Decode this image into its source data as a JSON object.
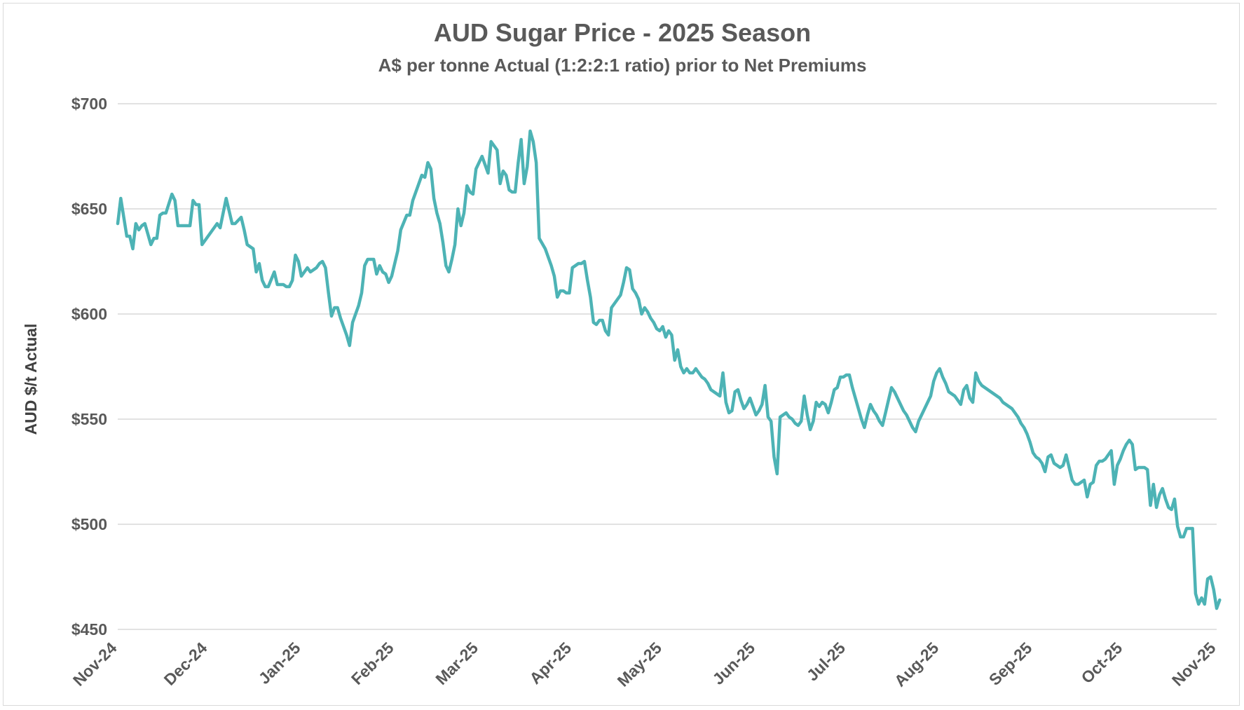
{
  "chart_data": {
    "type": "line",
    "title": "AUD Sugar Price - 2025 Season",
    "subtitle": "A$ per tonne Actual (1:2:2:1 ratio) prior to Net Premiums",
    "xlabel": "",
    "ylabel": "AUD $/t Actual",
    "ylim": [
      450,
      700
    ],
    "yticks": [
      450,
      500,
      550,
      600,
      650,
      700
    ],
    "ytick_labels": [
      "$450",
      "$500",
      "$550",
      "$600",
      "$650",
      "$700"
    ],
    "xlim": [
      "2024-11-01",
      "2025-11-01"
    ],
    "categories": [
      "Nov-24",
      "Dec-24",
      "Jan-25",
      "Feb-25",
      "Mar-25",
      "Apr-25",
      "May-25",
      "Jun-25",
      "Jul-25",
      "Aug-25",
      "Sep-25",
      "Oct-25",
      "Nov-25"
    ],
    "xtick_dates": [
      "2024-11-01",
      "2024-12-01",
      "2025-01-01",
      "2025-02-01",
      "2025-03-01",
      "2025-04-01",
      "2025-05-01",
      "2025-06-01",
      "2025-07-01",
      "2025-08-01",
      "2025-09-01",
      "2025-10-01",
      "2025-11-01"
    ],
    "grid": true,
    "legend": "none",
    "color": "#4db3b5",
    "series": [
      {
        "x": [
          "2024-11-01",
          "2024-11-02",
          "2024-11-04",
          "2024-11-05",
          "2024-11-06",
          "2024-11-07",
          "2024-11-08",
          "2024-11-09",
          "2024-11-10",
          "2024-11-12",
          "2024-11-13",
          "2024-11-14",
          "2024-11-15",
          "2024-11-16",
          "2024-11-17",
          "2024-11-19",
          "2024-11-20",
          "2024-11-21",
          "2024-11-22",
          "2024-11-24",
          "2024-11-25",
          "2024-11-26",
          "2024-11-27",
          "2024-11-28",
          "2024-11-29",
          "2024-12-03",
          "2024-12-04",
          "2024-12-05",
          "2024-12-06",
          "2024-12-07",
          "2024-12-09",
          "2024-12-10",
          "2024-12-12",
          "2024-12-13",
          "2024-12-14",
          "2024-12-16",
          "2024-12-17",
          "2024-12-18",
          "2024-12-19",
          "2024-12-20",
          "2024-12-21",
          "2024-12-23",
          "2024-12-24",
          "2024-12-26",
          "2024-12-27",
          "2024-12-28",
          "2024-12-29",
          "2024-12-30",
          "2024-12-31",
          "2025-01-01",
          "2025-01-03",
          "2025-01-04",
          "2025-01-06",
          "2025-01-07",
          "2025-01-08",
          "2025-01-09",
          "2025-01-10",
          "2025-01-11",
          "2025-01-12",
          "2025-01-13",
          "2025-01-14",
          "2025-01-16",
          "2025-01-17",
          "2025-01-18",
          "2025-01-19",
          "2025-01-20",
          "2025-01-21",
          "2025-01-22",
          "2025-01-23",
          "2025-01-24",
          "2025-01-25",
          "2025-01-26",
          "2025-01-27",
          "2025-01-28",
          "2025-01-29",
          "2025-01-30",
          "2025-01-31",
          "2025-02-02",
          "2025-02-03",
          "2025-02-05",
          "2025-02-06",
          "2025-02-07",
          "2025-02-08",
          "2025-02-09",
          "2025-02-10",
          "2025-02-11",
          "2025-02-12",
          "2025-02-13",
          "2025-02-14",
          "2025-02-15",
          "2025-02-16",
          "2025-02-17",
          "2025-02-18",
          "2025-02-19",
          "2025-02-20",
          "2025-02-21",
          "2025-02-22",
          "2025-02-23",
          "2025-02-24",
          "2025-02-25",
          "2025-02-26",
          "2025-02-27",
          "2025-02-28",
          "2025-03-02",
          "2025-03-04",
          "2025-03-05",
          "2025-03-06",
          "2025-03-07",
          "2025-03-08",
          "2025-03-09",
          "2025-03-10",
          "2025-03-11",
          "2025-03-12",
          "2025-03-13",
          "2025-03-14",
          "2025-03-15",
          "2025-03-16",
          "2025-03-17",
          "2025-03-18",
          "2025-03-19",
          "2025-03-20",
          "2025-03-21",
          "2025-03-23",
          "2025-03-24",
          "2025-03-25",
          "2025-03-26",
          "2025-03-27",
          "2025-03-28",
          "2025-03-29",
          "2025-03-30",
          "2025-03-31",
          "2025-04-01",
          "2025-04-02",
          "2025-04-03",
          "2025-04-04",
          "2025-04-05",
          "2025-04-06",
          "2025-04-07",
          "2025-04-08",
          "2025-04-09",
          "2025-04-10",
          "2025-04-11",
          "2025-04-12",
          "2025-04-13",
          "2025-04-14",
          "2025-04-15",
          "2025-04-17",
          "2025-04-18",
          "2025-04-19",
          "2025-04-20",
          "2025-04-21",
          "2025-04-22",
          "2025-04-23",
          "2025-04-24",
          "2025-04-25",
          "2025-04-26",
          "2025-04-27",
          "2025-04-28",
          "2025-04-29",
          "2025-04-30",
          "2025-05-01",
          "2025-05-02",
          "2025-05-03",
          "2025-05-04",
          "2025-05-05",
          "2025-05-06",
          "2025-05-07",
          "2025-05-08",
          "2025-05-09",
          "2025-05-10",
          "2025-05-11",
          "2025-05-12",
          "2025-05-13",
          "2025-05-14",
          "2025-05-15",
          "2025-05-16",
          "2025-05-17",
          "2025-05-18",
          "2025-05-19",
          "2025-05-20",
          "2025-05-21",
          "2025-05-22",
          "2025-05-23",
          "2025-05-24",
          "2025-05-25",
          "2025-05-26",
          "2025-05-27",
          "2025-05-28",
          "2025-05-29",
          "2025-05-30",
          "2025-05-31",
          "2025-06-01",
          "2025-06-02",
          "2025-06-03",
          "2025-06-04",
          "2025-06-05",
          "2025-06-06",
          "2025-06-07",
          "2025-06-08",
          "2025-06-09",
          "2025-06-10",
          "2025-06-11",
          "2025-06-12",
          "2025-06-13",
          "2025-06-14",
          "2025-06-15",
          "2025-06-16",
          "2025-06-17",
          "2025-06-18",
          "2025-06-19",
          "2025-06-20",
          "2025-06-21",
          "2025-06-22",
          "2025-06-23",
          "2025-06-24",
          "2025-06-25",
          "2025-06-26",
          "2025-06-27",
          "2025-06-28",
          "2025-06-29",
          "2025-06-30",
          "2025-07-01",
          "2025-07-02",
          "2025-07-03",
          "2025-07-04",
          "2025-07-05",
          "2025-07-06",
          "2025-07-07",
          "2025-07-08",
          "2025-07-09",
          "2025-07-10",
          "2025-07-11",
          "2025-07-12",
          "2025-07-13",
          "2025-07-14",
          "2025-07-15",
          "2025-07-16",
          "2025-07-17",
          "2025-07-18",
          "2025-07-19",
          "2025-07-20",
          "2025-07-21",
          "2025-07-22",
          "2025-07-23",
          "2025-07-24",
          "2025-07-25",
          "2025-07-26",
          "2025-07-27",
          "2025-07-28",
          "2025-07-29",
          "2025-07-30",
          "2025-07-31",
          "2025-08-01",
          "2025-08-02",
          "2025-08-03",
          "2025-08-04",
          "2025-08-05",
          "2025-08-06",
          "2025-08-07",
          "2025-08-08",
          "2025-08-09",
          "2025-08-10",
          "2025-08-11",
          "2025-08-12",
          "2025-08-13",
          "2025-08-14",
          "2025-08-15",
          "2025-08-16",
          "2025-08-17",
          "2025-08-18",
          "2025-08-19",
          "2025-08-20",
          "2025-08-21",
          "2025-08-22",
          "2025-08-23",
          "2025-08-24",
          "2025-08-25",
          "2025-08-26",
          "2025-08-27",
          "2025-08-28",
          "2025-08-29",
          "2025-08-30",
          "2025-08-31",
          "2025-09-01",
          "2025-09-02",
          "2025-09-03",
          "2025-09-04",
          "2025-09-05",
          "2025-09-06",
          "2025-09-07",
          "2025-09-08",
          "2025-09-09",
          "2025-09-10",
          "2025-09-11",
          "2025-09-12",
          "2025-09-13",
          "2025-09-14",
          "2025-09-15",
          "2025-09-16",
          "2025-09-17",
          "2025-09-18",
          "2025-09-19",
          "2025-09-20",
          "2025-09-21",
          "2025-09-22",
          "2025-09-23",
          "2025-09-24",
          "2025-09-25",
          "2025-09-26",
          "2025-09-27",
          "2025-09-28",
          "2025-09-29",
          "2025-09-30",
          "2025-10-01",
          "2025-10-02",
          "2025-10-03",
          "2025-10-04",
          "2025-10-05",
          "2025-10-06",
          "2025-10-07",
          "2025-10-08",
          "2025-10-09",
          "2025-10-10",
          "2025-10-11",
          "2025-10-12",
          "2025-10-13",
          "2025-10-14",
          "2025-10-15",
          "2025-10-16",
          "2025-10-17",
          "2025-10-18",
          "2025-10-19",
          "2025-10-20",
          "2025-10-21",
          "2025-10-22",
          "2025-10-23",
          "2025-10-24",
          "2025-10-25",
          "2025-10-26",
          "2025-10-27",
          "2025-10-28",
          "2025-10-29",
          "2025-10-30",
          "2025-10-31",
          "2025-11-01",
          "2025-11-02"
        ],
        "y": [
          643,
          655,
          637,
          637,
          631,
          643,
          640,
          642,
          643,
          633,
          636,
          636,
          647,
          648,
          648,
          657,
          654,
          642,
          642,
          642,
          642,
          654,
          652,
          652,
          633,
          641,
          643,
          641,
          648,
          655,
          643,
          643,
          646,
          640,
          633,
          631,
          620,
          624,
          616,
          613,
          613,
          620,
          614,
          614,
          613,
          613,
          616,
          628,
          625,
          618,
          622,
          620,
          622,
          624,
          625,
          622,
          610,
          599,
          603,
          603,
          598,
          590,
          585,
          596,
          600,
          604,
          610,
          623,
          626,
          626,
          626,
          619,
          623,
          620,
          619,
          615,
          618,
          630,
          640,
          647,
          647,
          654,
          658,
          662,
          666,
          665,
          672,
          669,
          655,
          648,
          643,
          634,
          623,
          620,
          626,
          633,
          650,
          642,
          648,
          661,
          658,
          657,
          669,
          675,
          667,
          682,
          680,
          678,
          662,
          668,
          666,
          659,
          658,
          658,
          672,
          683,
          662,
          670,
          687,
          682,
          672,
          636,
          631,
          627,
          623,
          618,
          608,
          611,
          611,
          610,
          610,
          622,
          623,
          624,
          624,
          625,
          616,
          608,
          596,
          595,
          597,
          597,
          592,
          590,
          603,
          605,
          609,
          615,
          622,
          621,
          612,
          610,
          607,
          600,
          603,
          601,
          598,
          596,
          593,
          592,
          594,
          589,
          592,
          590,
          578,
          583,
          575,
          572,
          574,
          572,
          572,
          574,
          572,
          570,
          569,
          567,
          564,
          563,
          562,
          561,
          572,
          558,
          553,
          554,
          563,
          564,
          559,
          555,
          557,
          560,
          556,
          552,
          554,
          557,
          566,
          551,
          549,
          532,
          524,
          551,
          552,
          553,
          551,
          550,
          548,
          547,
          549,
          561,
          552,
          545,
          549,
          558,
          556,
          558,
          557,
          553,
          558,
          564,
          565,
          570,
          570,
          571,
          571,
          565,
          560,
          555,
          550,
          546,
          552,
          557,
          554,
          552,
          549,
          547,
          553,
          559,
          565,
          563,
          560,
          557,
          554,
          552,
          549,
          546,
          544,
          549,
          552,
          555,
          558,
          561,
          568,
          572,
          574,
          570,
          567,
          563,
          562,
          561,
          559,
          557,
          564,
          566,
          560,
          558,
          572,
          568,
          566,
          565,
          564,
          563,
          562,
          561,
          560,
          558,
          557,
          556,
          555,
          553,
          551,
          548,
          546,
          543,
          539,
          534,
          532,
          531,
          529,
          525,
          532,
          533,
          529,
          528,
          527,
          528,
          533,
          527,
          521,
          519,
          519,
          520,
          521,
          513,
          519,
          520,
          528,
          530,
          530,
          531,
          533,
          535,
          519,
          528,
          531,
          535,
          538,
          540,
          538,
          526,
          527,
          527,
          527,
          526,
          509,
          519,
          508,
          514,
          517,
          512,
          508,
          507,
          512,
          499,
          494,
          494,
          498,
          498,
          498,
          467,
          462,
          465,
          462,
          474,
          475,
          469,
          460,
          464
        ]
      }
    ]
  }
}
